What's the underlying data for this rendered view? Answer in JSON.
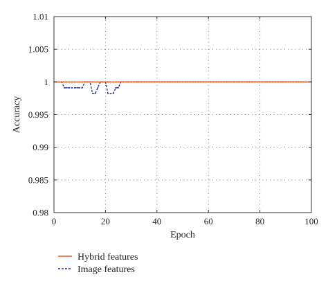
{
  "chart_data": {
    "type": "line",
    "title": "",
    "xlabel": "Epoch",
    "ylabel": "Accuracy",
    "xlim": [
      0,
      100
    ],
    "ylim": [
      0.98,
      1.01
    ],
    "xticks": [
      0,
      20,
      40,
      60,
      80,
      100
    ],
    "yticks": [
      0.98,
      0.985,
      0.99,
      0.995,
      1,
      1.005,
      1.01
    ],
    "xtick_labels": [
      "0",
      "20",
      "40",
      "60",
      "80",
      "100"
    ],
    "ytick_labels": [
      "0.98",
      "0.985",
      "0.99",
      "0.995",
      "1",
      "1.005",
      "1.01"
    ],
    "grid": true,
    "legend_position": "bottom-left outside",
    "series": [
      {
        "name": "Hybrid features",
        "color": "#e8541c",
        "style": "solid",
        "x": [
          0,
          1,
          2,
          3,
          4,
          5,
          6,
          7,
          8,
          9,
          10,
          11,
          12,
          13,
          14,
          15,
          16,
          17,
          18,
          19,
          20,
          21,
          22,
          23,
          24,
          25,
          26,
          27,
          28,
          29,
          30,
          100
        ],
        "y": [
          1,
          1,
          1,
          1,
          1,
          1,
          1,
          1,
          1,
          1,
          1,
          1,
          1,
          1,
          1,
          1,
          1,
          1,
          1,
          1,
          1,
          1,
          1,
          1,
          1,
          1,
          1,
          1,
          1,
          1,
          1,
          1
        ]
      },
      {
        "name": "Image features",
        "color": "#1f2a8a",
        "style": "dashed",
        "x": [
          0,
          1,
          2,
          3,
          4,
          5,
          6,
          7,
          8,
          9,
          10,
          11,
          12,
          13,
          14,
          15,
          16,
          17,
          18,
          19,
          20,
          21,
          22,
          23,
          24,
          25,
          26,
          27,
          28,
          29,
          30,
          31,
          32,
          33,
          34,
          35,
          36,
          37,
          38,
          39,
          40,
          41,
          42,
          43,
          44,
          45,
          46,
          47,
          48,
          49,
          50,
          51,
          52,
          53,
          54,
          55,
          56,
          57,
          58,
          59,
          60,
          61,
          62,
          63,
          64,
          65,
          66,
          67,
          68,
          69,
          70,
          71,
          72,
          73,
          74,
          75,
          76,
          77,
          78,
          79,
          80,
          81,
          82,
          83,
          84,
          85,
          86,
          87,
          88,
          89,
          90,
          91,
          92,
          93,
          94,
          95,
          96,
          97,
          98,
          99,
          100
        ],
        "y": [
          1,
          1,
          1,
          1,
          0.9991,
          0.9991,
          0.9991,
          0.9991,
          0.9991,
          0.9991,
          0.9991,
          0.9991,
          1,
          1,
          1,
          0.9982,
          0.9982,
          0.9991,
          1,
          1,
          1,
          0.9982,
          0.9982,
          0.9982,
          0.9991,
          0.9991,
          1,
          1,
          1,
          1,
          1,
          1,
          1,
          1,
          1,
          1,
          1,
          1,
          1,
          1,
          1,
          1,
          1,
          1,
          1,
          1,
          1,
          1,
          1,
          1,
          1,
          1,
          1,
          1,
          1,
          1,
          1,
          1,
          1,
          1,
          1,
          1,
          1,
          1,
          1,
          1,
          1,
          1,
          1,
          1,
          1,
          1,
          1,
          1,
          1,
          1,
          1,
          1,
          1,
          1,
          1,
          1,
          1,
          1,
          1,
          1,
          1,
          1,
          1,
          1,
          1,
          1,
          1,
          1,
          1,
          1,
          1,
          1,
          1,
          1,
          1
        ]
      }
    ]
  }
}
